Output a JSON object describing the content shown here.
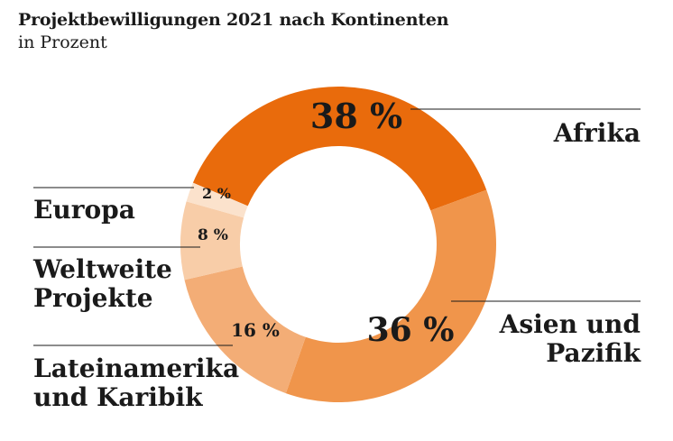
{
  "title": "Projektbewilligungen 2021 nach Kontinenten",
  "subtitle": "in Prozent",
  "chart_data": {
    "type": "pie",
    "donut": true,
    "title": "Projektbewilligungen 2021 nach Kontinenten",
    "subtitle": "in Prozent",
    "unit": "%",
    "slices": [
      {
        "label": "Afrika",
        "label_lines": [
          "Afrika"
        ],
        "value": 38,
        "value_label": "38 %",
        "color": "#e96b0c"
      },
      {
        "label": "Asien und Pazifik",
        "label_lines": [
          "Asien und",
          "Pazifik"
        ],
        "value": 36,
        "value_label": "36 %",
        "color": "#f0954b"
      },
      {
        "label": "Lateinamerika und Karibik",
        "label_lines": [
          "Lateinamerika",
          "und Karibik"
        ],
        "value": 16,
        "value_label": "16 %",
        "color": "#f3ad76"
      },
      {
        "label": "Weltweite Projekte",
        "label_lines": [
          "Weltweite",
          "Projekte"
        ],
        "value": 8,
        "value_label": "8 %",
        "color": "#f8cda8"
      },
      {
        "label": "Europa",
        "label_lines": [
          "Europa"
        ],
        "value": 2,
        "value_label": "2 %",
        "color": "#fbe2cc"
      }
    ]
  }
}
